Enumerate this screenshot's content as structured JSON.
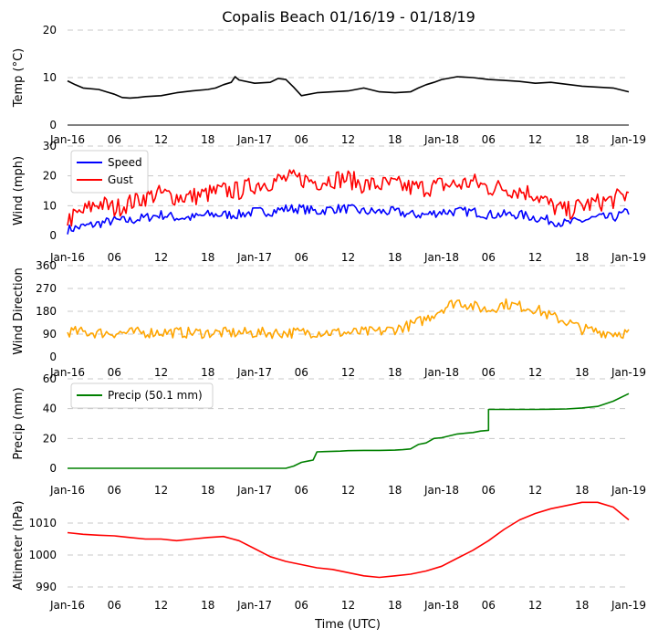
{
  "title": "Copalis Beach 01/16/19 - 01/18/19",
  "x_axis_label": "Time (UTC)",
  "x_tick_labels": [
    "Jan-16",
    "06",
    "12",
    "18",
    "Jan-17",
    "06",
    "12",
    "18",
    "Jan-18",
    "06",
    "12",
    "18",
    "Jan-19"
  ],
  "chart_data": [
    {
      "type": "line",
      "name": "temperature",
      "ylabel": "Temp (°C)",
      "ylim": [
        0,
        20
      ],
      "yticks": [
        0,
        10,
        20
      ],
      "x_unit": "hours since 2019-01-16 00:00 UTC",
      "series": [
        {
          "name": "Temp",
          "color": "#000000",
          "x": [
            0,
            1,
            2,
            4,
            5,
            6,
            7,
            8,
            9,
            10,
            12,
            14,
            16,
            18,
            19,
            20,
            21,
            21.5,
            22,
            24,
            26,
            27,
            28,
            29,
            30,
            32,
            34,
            36,
            38,
            40,
            42,
            44,
            45,
            46,
            47,
            48,
            50,
            52,
            54,
            56,
            58,
            60,
            62,
            64,
            66,
            68,
            70,
            72
          ],
          "values": [
            9.3,
            8.5,
            7.8,
            7.5,
            7,
            6.5,
            5.8,
            5.7,
            5.8,
            6,
            6.2,
            6.8,
            7.2,
            7.5,
            7.8,
            8.5,
            9,
            10.2,
            9.5,
            8.8,
            9,
            9.8,
            9.6,
            8,
            6.2,
            6.8,
            7,
            7.2,
            7.8,
            7,
            6.8,
            7,
            7.8,
            8.5,
            9,
            9.6,
            10.2,
            10,
            9.6,
            9.4,
            9.2,
            8.8,
            9,
            8.6,
            8.2,
            8,
            7.8,
            7
          ]
        }
      ]
    },
    {
      "type": "line",
      "name": "wind",
      "ylabel": "Wind (mph)",
      "ylim": [
        0,
        30
      ],
      "yticks": [
        0,
        10,
        20,
        30
      ],
      "legend": {
        "placement": "top-left",
        "entries": [
          "Speed",
          "Gust"
        ]
      },
      "series": [
        {
          "name": "Speed",
          "color": "#0000ff",
          "x": [
            0,
            2,
            4,
            6,
            8,
            10,
            12,
            14,
            16,
            18,
            20,
            22,
            24,
            26,
            28,
            30,
            32,
            34,
            36,
            38,
            40,
            42,
            44,
            46,
            48,
            50,
            52,
            54,
            56,
            58,
            60,
            62,
            64,
            66,
            68,
            70,
            72
          ],
          "values": [
            2,
            3,
            4,
            5,
            5,
            6,
            7,
            6,
            6,
            7,
            7,
            7,
            8,
            8,
            9,
            9,
            8,
            9,
            9,
            8,
            8,
            8,
            7,
            7,
            8,
            8,
            8,
            7,
            7,
            7,
            6,
            5,
            4,
            5,
            6,
            6,
            8
          ],
          "noise": 1.6
        },
        {
          "name": "Gust",
          "color": "#ff0000",
          "x": [
            0,
            2,
            4,
            6,
            8,
            10,
            12,
            14,
            16,
            18,
            20,
            22,
            24,
            26,
            28,
            30,
            32,
            34,
            36,
            38,
            40,
            42,
            44,
            46,
            48,
            50,
            52,
            54,
            56,
            58,
            60,
            62,
            64,
            66,
            68,
            70,
            72
          ],
          "values": [
            5,
            8,
            11,
            9,
            11,
            13,
            14,
            13,
            13,
            14,
            15,
            15,
            17,
            18,
            19,
            19,
            18,
            19,
            19,
            17,
            17,
            17,
            16,
            16,
            17,
            17,
            18,
            16,
            16,
            15,
            14,
            10,
            8,
            10,
            11,
            12,
            14
          ],
          "noise": 3.2
        }
      ]
    },
    {
      "type": "line",
      "name": "wind_direction",
      "ylabel": "Wind Direction",
      "ylim": [
        0,
        360
      ],
      "yticks": [
        0,
        90,
        180,
        270,
        360
      ],
      "series": [
        {
          "name": "Direction",
          "color": "#ffa500",
          "x": [
            0,
            4,
            8,
            12,
            16,
            20,
            24,
            28,
            32,
            36,
            40,
            42,
            44,
            46,
            48,
            50,
            52,
            54,
            56,
            58,
            60,
            62,
            64,
            66,
            68,
            70,
            72
          ],
          "values": [
            100,
            95,
            95,
            98,
            95,
            95,
            95,
            95,
            98,
            95,
            100,
            110,
            125,
            150,
            190,
            220,
            200,
            185,
            210,
            200,
            190,
            160,
            140,
            110,
            100,
            95,
            95
          ],
          "noise": 22
        }
      ]
    },
    {
      "type": "line",
      "name": "precip",
      "ylabel": "Precip (mm)",
      "ylim": [
        0,
        60
      ],
      "yticks": [
        0,
        20,
        40,
        60
      ],
      "legend": {
        "placement": "top-left",
        "entries": [
          "Precip (50.1 mm)"
        ]
      },
      "series": [
        {
          "name": "Precip (50.1 mm)",
          "color": "#008000",
          "x": [
            0,
            28,
            29,
            30,
            31,
            31.5,
            32,
            33,
            35,
            36,
            38,
            40,
            42,
            43,
            44,
            45,
            46,
            47,
            48,
            50,
            51,
            52,
            53,
            54,
            54.01,
            56,
            58,
            60,
            62,
            64,
            66,
            68,
            70,
            72
          ],
          "values": [
            0,
            0,
            1.5,
            4,
            5,
            5.5,
            11,
            11.2,
            11.5,
            11.8,
            12,
            12,
            12.2,
            12.5,
            13,
            16,
            17,
            20,
            20.5,
            23,
            23.5,
            24,
            25,
            25.5,
            39.5,
            39.5,
            39.5,
            39.5,
            39.6,
            39.8,
            40.5,
            41.5,
            45,
            50.1
          ]
        }
      ]
    },
    {
      "type": "line",
      "name": "altimeter",
      "ylabel": "Altimeter (hPa)",
      "ylim": [
        988,
        1018
      ],
      "yticks": [
        990,
        1000,
        1010
      ],
      "series": [
        {
          "name": "Altimeter",
          "color": "#ff0000",
          "x": [
            0,
            2,
            4,
            6,
            8,
            10,
            12,
            14,
            16,
            18,
            20,
            22,
            24,
            26,
            28,
            30,
            32,
            34,
            36,
            38,
            40,
            42,
            44,
            46,
            48,
            50,
            52,
            54,
            56,
            58,
            60,
            62,
            64,
            66,
            68,
            70,
            72
          ],
          "values": [
            1007,
            1006.5,
            1006.2,
            1006,
            1005.5,
            1005,
            1005,
            1004.5,
            1005,
            1005.5,
            1005.8,
            1004.5,
            1002,
            999.5,
            998,
            997,
            996,
            995.5,
            994.5,
            993.5,
            993,
            993.5,
            994,
            995,
            996.5,
            999,
            1001.5,
            1004.5,
            1008,
            1011,
            1013,
            1014.5,
            1015.5,
            1016.5,
            1016.5,
            1015,
            1011
          ]
        }
      ]
    }
  ]
}
